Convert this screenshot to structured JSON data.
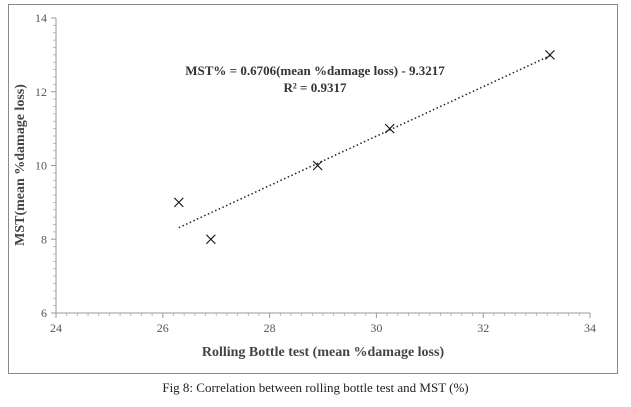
{
  "caption": "Fig 8: Correlation between rolling bottle test and MST (%)",
  "chart_data": {
    "type": "scatter",
    "xlabel": "Rolling Bottle test (mean %damage loss)",
    "ylabel": "MST(mean %damage loss)",
    "xlim": [
      24,
      34
    ],
    "ylim": [
      6,
      14
    ],
    "xticks": [
      24,
      26,
      28,
      30,
      32,
      34
    ],
    "yticks": [
      6,
      8,
      10,
      12,
      14
    ],
    "grid": false,
    "marker": "x",
    "points": [
      {
        "x": 26.3,
        "y": 9.0
      },
      {
        "x": 26.9,
        "y": 8.0
      },
      {
        "x": 28.9,
        "y": 10.0
      },
      {
        "x": 30.25,
        "y": 11.0
      },
      {
        "x": 33.25,
        "y": 13.0
      }
    ],
    "trendline": {
      "type": "linear",
      "slope": 0.6706,
      "intercept": -9.3217,
      "x_range": [
        26.3,
        33.25
      ],
      "style": "dotted"
    },
    "annotations": {
      "equation": "MST% = 0.6706(mean %damage loss) - 9.3217",
      "r_squared": "R² = 0.9317"
    }
  }
}
